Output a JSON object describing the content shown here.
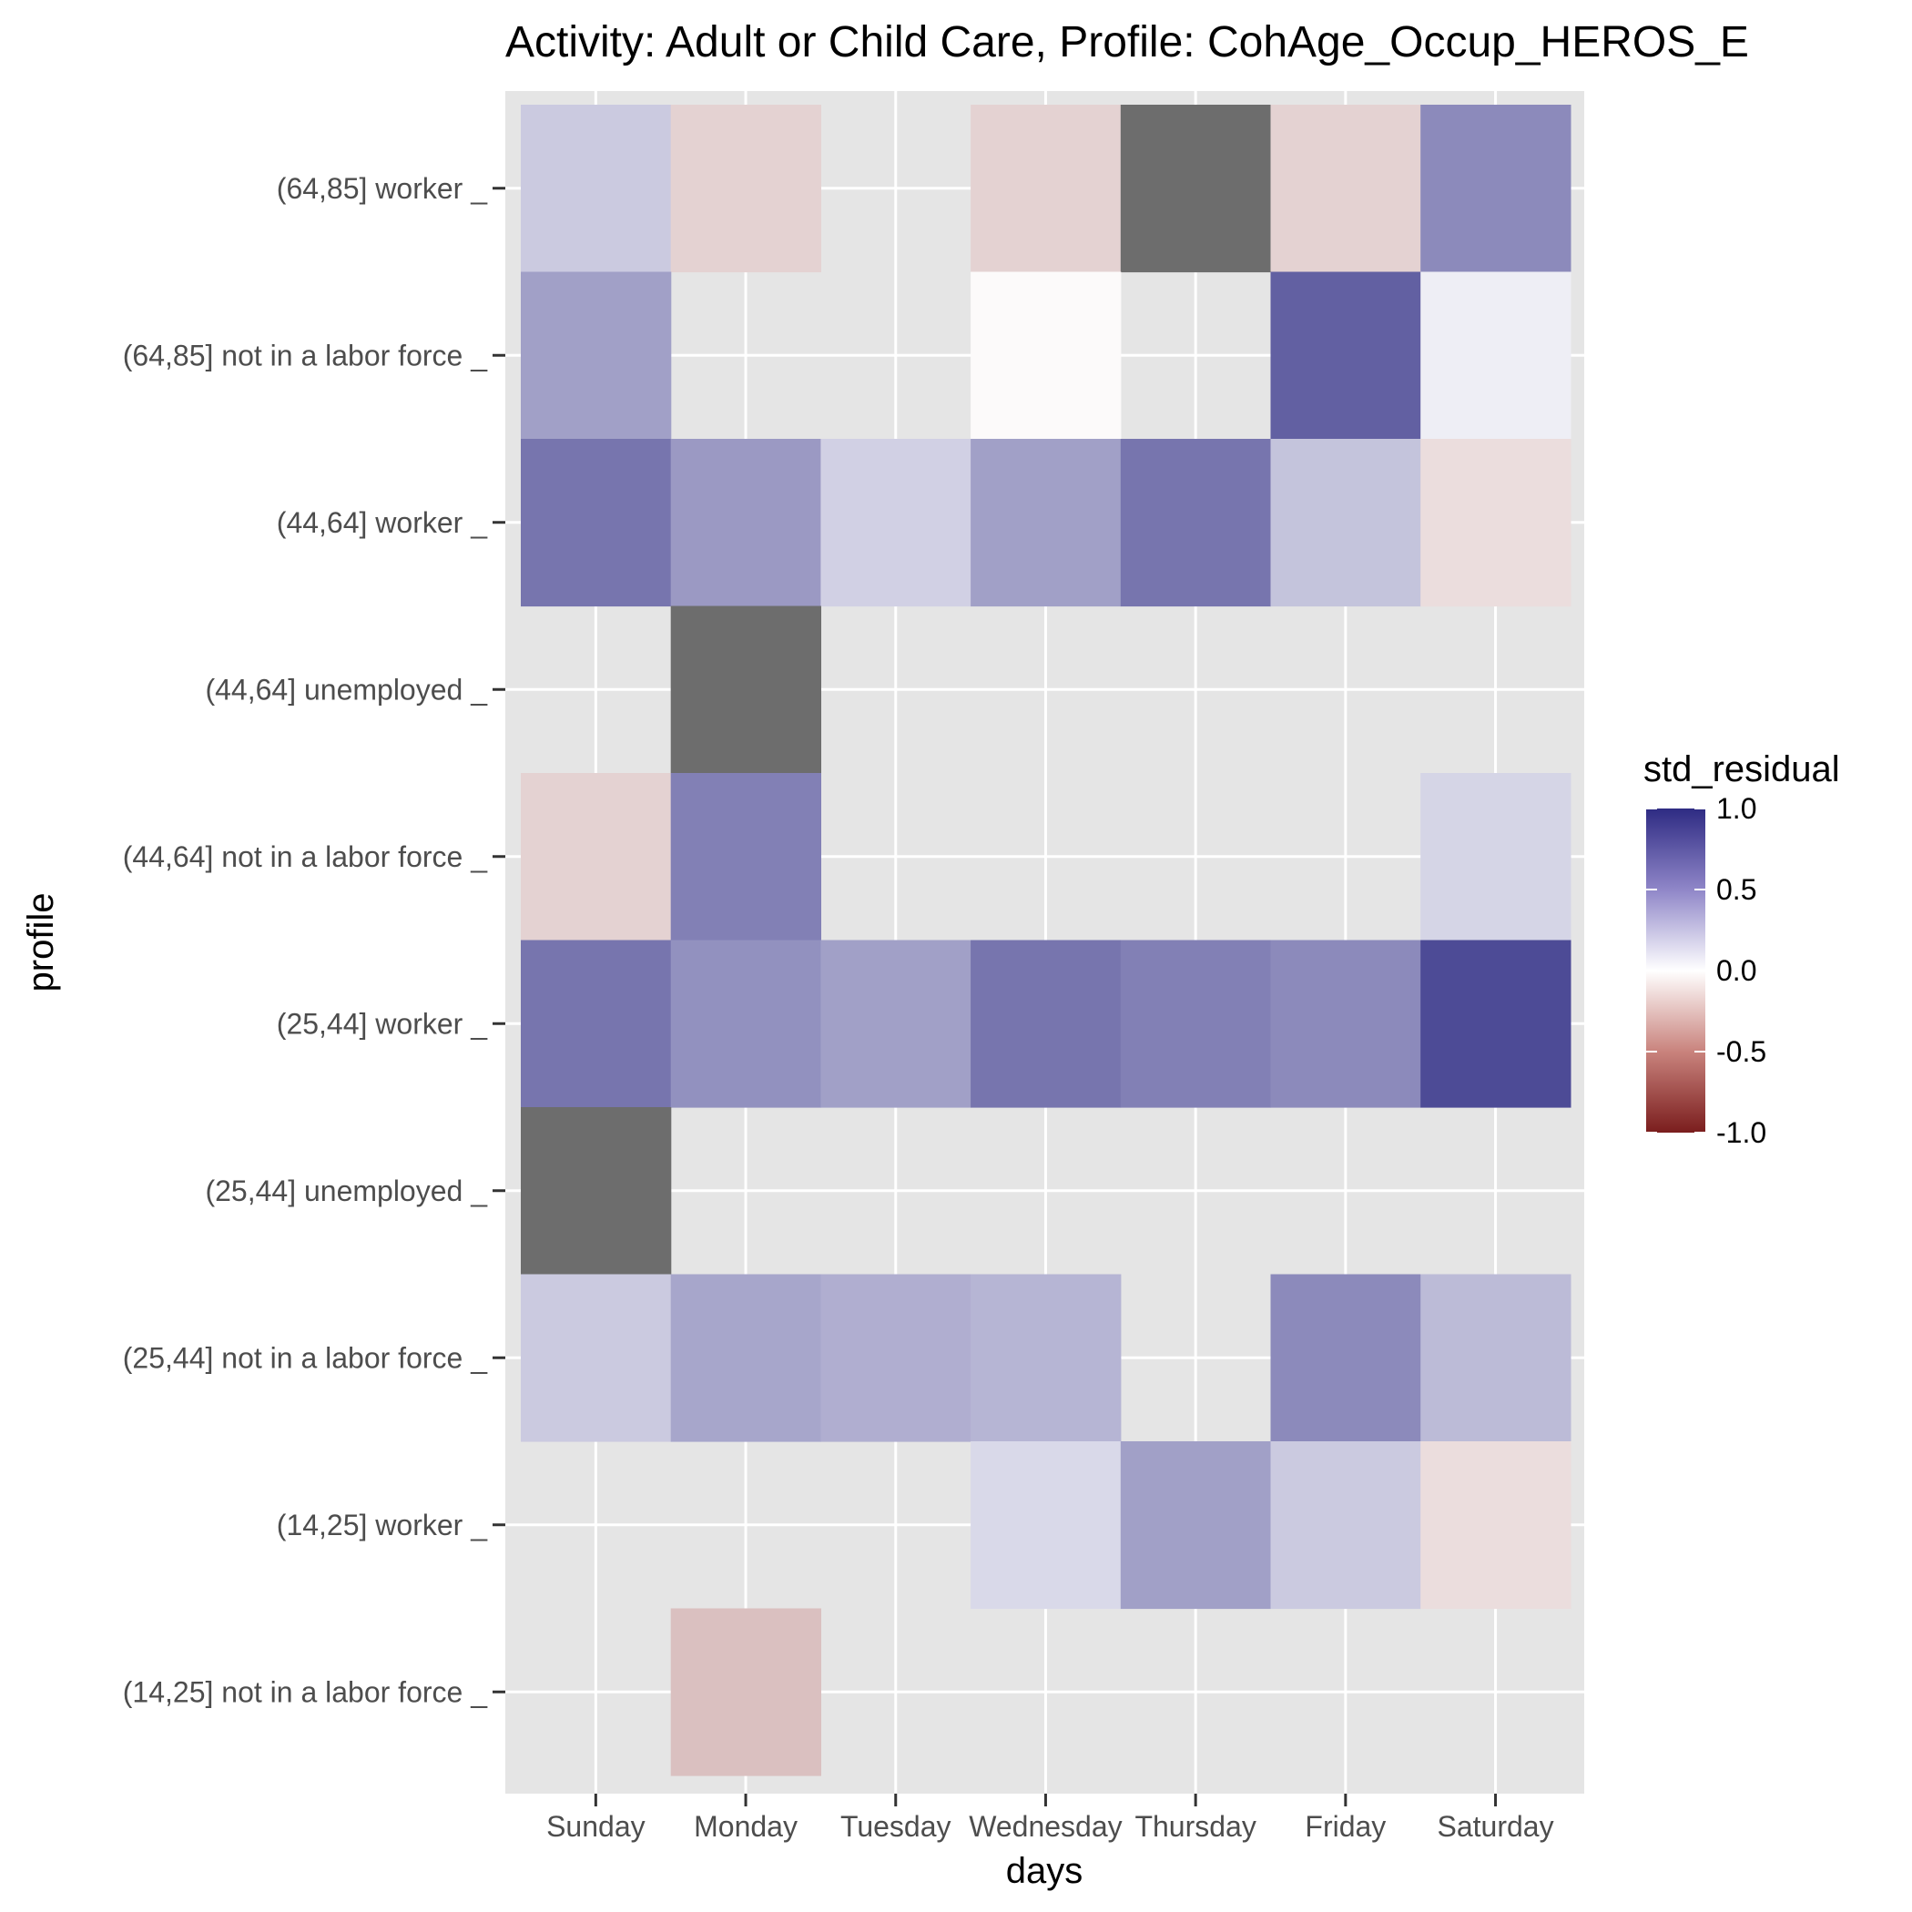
{
  "chart_data": {
    "type": "heatmap",
    "title": "Activity: Adult or Child Care, Profile: CohAge_Occup_HEROS_E",
    "xlabel": "days",
    "ylabel": "profile",
    "x_categories": [
      "Sunday",
      "Monday",
      "Tuesday",
      "Wednesday",
      "Thursday",
      "Friday",
      "Saturday"
    ],
    "y_categories": [
      "(64,85] worker _",
      "(64,85] not in a labor force _",
      "(44,64] worker _",
      "(44,64] unemployed _",
      "(44,64] not in a labor force _",
      "(25,44] worker _",
      "(25,44] unemployed _",
      "(25,44] not in a labor force _",
      "(14,25] worker _",
      "(14,25] not in a labor force _"
    ],
    "na_marker": "NA",
    "values": [
      [
        0.25,
        -0.2,
        null,
        -0.2,
        "NA",
        -0.2,
        0.55
      ],
      [
        0.45,
        null,
        null,
        -0.02,
        null,
        0.75,
        0.08
      ],
      [
        0.65,
        0.48,
        0.22,
        0.45,
        0.65,
        0.28,
        -0.15
      ],
      [
        null,
        "NA",
        null,
        null,
        null,
        null,
        null
      ],
      [
        -0.2,
        0.6,
        null,
        null,
        null,
        null,
        0.2
      ],
      [
        0.65,
        0.52,
        0.45,
        0.65,
        0.6,
        0.55,
        0.85
      ],
      [
        "NA",
        null,
        null,
        null,
        null,
        null,
        null
      ],
      [
        0.25,
        0.42,
        0.38,
        0.35,
        null,
        0.55,
        0.32
      ],
      [
        null,
        null,
        null,
        0.18,
        0.45,
        0.25,
        -0.15
      ],
      [
        null,
        -0.28,
        null,
        null,
        null,
        null,
        null
      ]
    ],
    "legend": {
      "title": "std_residual",
      "ticks": [
        "1.0",
        "0.5",
        "0.0",
        "-0.5",
        "-1.0"
      ],
      "range": [
        -1.0,
        1.0
      ],
      "placement": "right"
    },
    "colors": {
      "high": "#2e2b83",
      "mid": "#ffffff",
      "low": "#7a1d1d",
      "na": "#6d6d6d",
      "panel": "#e5e5e5",
      "grid": "#ffffff"
    },
    "grid": true
  }
}
